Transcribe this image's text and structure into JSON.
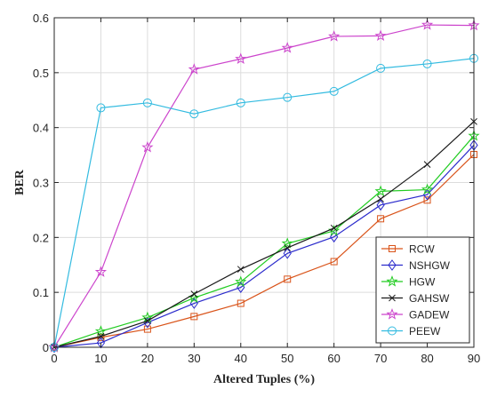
{
  "chart_data": {
    "type": "line",
    "title": "",
    "xlabel": "Altered Tuples (%)",
    "ylabel": "BER",
    "x": [
      0,
      10,
      20,
      30,
      40,
      50,
      60,
      70,
      80,
      90
    ],
    "xlim": [
      0,
      90
    ],
    "ylim": [
      0,
      0.6
    ],
    "xticks": [
      "0",
      "10",
      "20",
      "30",
      "40",
      "50",
      "60",
      "70",
      "80",
      "90"
    ],
    "yticks": [
      "0",
      "0.1",
      "0.2",
      "0.3",
      "0.4",
      "0.5",
      "0.6"
    ],
    "grid": true,
    "legend_position": "bottom-right",
    "series": [
      {
        "name": "RCW",
        "color": "#d95319",
        "marker": "square",
        "values": [
          0,
          0.018,
          0.033,
          0.056,
          0.08,
          0.124,
          0.156,
          0.234,
          0.268,
          0.351
        ]
      },
      {
        "name": "NSHGW",
        "color": "#2b2bcc",
        "marker": "diamond",
        "values": [
          0,
          0.008,
          0.045,
          0.08,
          0.109,
          0.171,
          0.201,
          0.259,
          0.278,
          0.368
        ]
      },
      {
        "name": "HGW",
        "color": "#22cc22",
        "marker": "star",
        "values": [
          0,
          0.029,
          0.054,
          0.09,
          0.119,
          0.189,
          0.212,
          0.284,
          0.287,
          0.385
        ]
      },
      {
        "name": "GAHSW",
        "color": "#1a1a1a",
        "marker": "x",
        "values": [
          0,
          0.02,
          0.048,
          0.097,
          0.142,
          0.181,
          0.217,
          0.27,
          0.333,
          0.411
        ]
      },
      {
        "name": "GADEW",
        "color": "#cc44cc",
        "marker": "star",
        "values": [
          0,
          0.137,
          0.364,
          0.506,
          0.525,
          0.545,
          0.566,
          0.567,
          0.587,
          0.586
        ]
      },
      {
        "name": "PEEW",
        "color": "#33bbe0",
        "marker": "circle",
        "values": [
          0,
          0.436,
          0.445,
          0.425,
          0.445,
          0.455,
          0.466,
          0.508,
          0.516,
          0.526
        ]
      }
    ]
  }
}
